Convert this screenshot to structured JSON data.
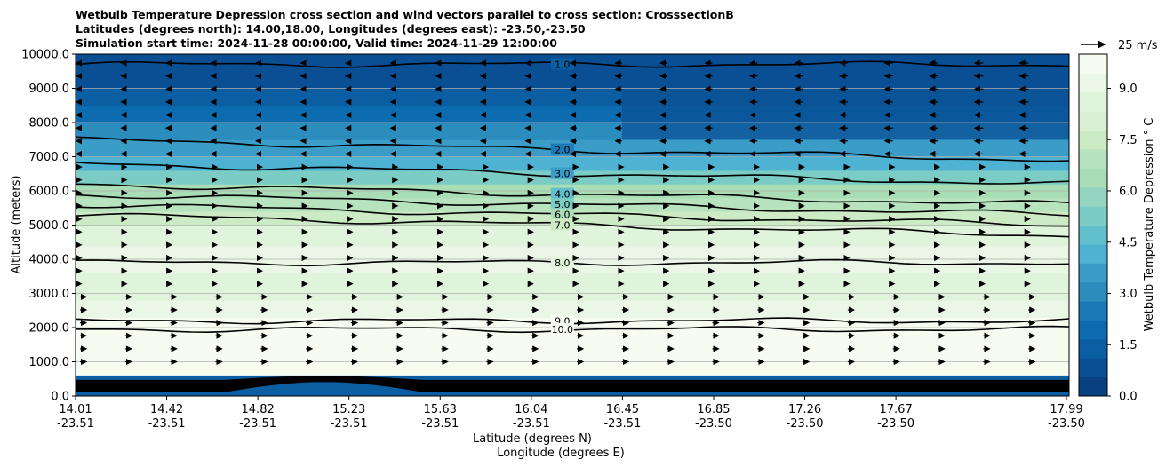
{
  "title_lines": [
    "Wetbulb Temperature Depression cross section and wind vectors parallel to cross section: CrosssectionB",
    "Latitudes (degrees north): 14.00,18.00, Longitudes (degrees east): -23.50,-23.50",
    "Simulation start time: 2024-11-28 00:00:00, Valid time: 2024-11-29 12:00:00"
  ],
  "chart_data": {
    "type": "heatmap",
    "title": "Wetbulb Temperature Depression cross section and wind vectors parallel to cross section: CrosssectionB",
    "ylabel": "Altitude (meters)",
    "xlabel": "Latitude (degrees N)",
    "xlabel2": "Longitude (degrees E)",
    "ylim": [
      0,
      10000
    ],
    "y_ticks": [
      "0.0",
      "1000.0",
      "2000.0",
      "3000.0",
      "4000.0",
      "5000.0",
      "6000.0",
      "7000.0",
      "8000.0",
      "9000.0",
      "10000.0"
    ],
    "x_ticks": [
      {
        "lat": "14.01",
        "lon": "-23.51"
      },
      {
        "lat": "14.42",
        "lon": "-23.51"
      },
      {
        "lat": "14.82",
        "lon": "-23.51"
      },
      {
        "lat": "15.23",
        "lon": "-23.51"
      },
      {
        "lat": "15.63",
        "lon": "-23.51"
      },
      {
        "lat": "16.04",
        "lon": "-23.51"
      },
      {
        "lat": "16.45",
        "lon": "-23.51"
      },
      {
        "lat": "16.85",
        "lon": "-23.50"
      },
      {
        "lat": "17.26",
        "lon": "-23.50"
      },
      {
        "lat": "17.67",
        "lon": "-23.50"
      },
      {
        "lat": "17.99",
        "lon": "-23.50"
      }
    ],
    "grid": "horizontal",
    "colorbar": {
      "label": "Wetbulb Temperature Depression ° C",
      "range": [
        0,
        10
      ],
      "ticks": [
        "0.0",
        "1.5",
        "3.0",
        "4.5",
        "6.0",
        "7.5",
        "9.0"
      ],
      "colors": [
        "#084081",
        "#0a4f93",
        "#0b5ea2",
        "#0d6caf",
        "#1a7ab8",
        "#2b8cbe",
        "#3a9cc7",
        "#4eb3d3",
        "#62c0cd",
        "#7bccc4",
        "#94d4c0",
        "#a8ddb5",
        "#b8e3bf",
        "#ccebc5",
        "#d9f0d3",
        "#e0f3db",
        "#ebf7e6",
        "#f7fcf0"
      ]
    },
    "quiver_key": {
      "label": "25 m/s",
      "value": 25
    },
    "contour_lines": [
      {
        "level": 1.0,
        "label": "1.0",
        "alt": 9700
      },
      {
        "level": 2.0,
        "label": "2.0",
        "alt": 7500
      },
      {
        "level": 3.0,
        "label": "3.0",
        "alt": 6800
      },
      {
        "level": 4.0,
        "label": "4.0",
        "alt": 6200
      },
      {
        "level": 5.0,
        "label": "5.0",
        "alt": 5900
      },
      {
        "level": 6.0,
        "label": "6.0",
        "alt": 5600
      },
      {
        "level": 7.0,
        "label": "7.0",
        "alt": 5300
      },
      {
        "level": 8.0,
        "label": "8.0",
        "alt": 3900
      },
      {
        "level": 9.0,
        "label": "9.0",
        "alt": 2200
      },
      {
        "level": 10.0,
        "label": "10.0",
        "alt": 1950
      }
    ],
    "extra_contour_labels": [
      "9.0",
      "7.0",
      "10.0",
      "8.0",
      "1.0",
      "2.0",
      "6"
    ]
  }
}
